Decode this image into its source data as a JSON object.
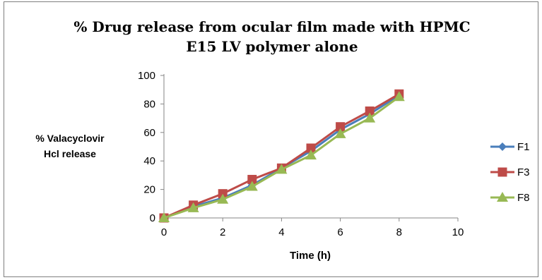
{
  "chart_data": {
    "type": "line",
    "title": [
      "% Drug release from ocular film made with HPMC",
      "E15 LV polymer alone"
    ],
    "xlabel": "Time (h)",
    "ylabel": [
      "% Valacyclovir",
      "Hcl release"
    ],
    "xlim": [
      0,
      10
    ],
    "ylim": [
      0,
      100
    ],
    "xticks": [
      0,
      2,
      4,
      6,
      8,
      10
    ],
    "yticks": [
      0,
      20,
      40,
      60,
      80,
      100
    ],
    "grid": false,
    "legend_position": "right",
    "x": [
      0,
      1,
      2,
      3,
      4,
      5,
      6,
      7,
      8
    ],
    "series": [
      {
        "name": "F1",
        "color": "#4a7ebb",
        "marker": "diamond",
        "values": [
          0,
          8,
          14,
          23,
          35,
          47,
          62,
          73,
          86
        ]
      },
      {
        "name": "F3",
        "color": "#be4b48",
        "marker": "square",
        "values": [
          0,
          9,
          17,
          27,
          35,
          49,
          64,
          75,
          87
        ]
      },
      {
        "name": "F8",
        "color": "#98b954",
        "marker": "triangle",
        "values": [
          0,
          7,
          13,
          22,
          34,
          44,
          59,
          70,
          85
        ]
      }
    ]
  }
}
